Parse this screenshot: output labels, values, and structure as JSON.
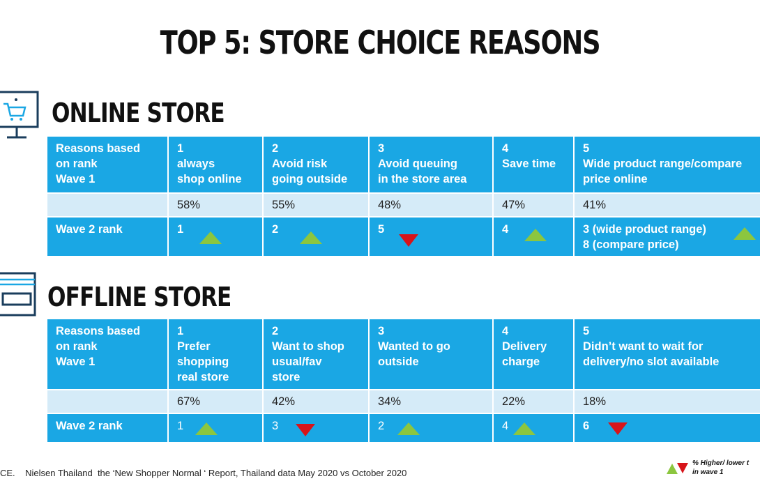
{
  "title": "TOP 5: STORE CHOICE REASONS",
  "online": {
    "title": "ONLINE STORE",
    "header_label": [
      "Reasons based",
      "on rank",
      "Wave 1"
    ],
    "reasons": [
      {
        "rank": "1",
        "label": [
          "always",
          "shop online"
        ]
      },
      {
        "rank": "2",
        "label": [
          "Avoid risk",
          "going outside"
        ]
      },
      {
        "rank": "3",
        "label": [
          "Avoid queuing",
          "in the store area"
        ]
      },
      {
        "rank": "4",
        "label": [
          "Save time"
        ]
      },
      {
        "rank": "5",
        "label": [
          "Wide product range/compare",
          "price online"
        ]
      }
    ],
    "percentages": [
      "58%",
      "55%",
      "48%",
      "47%",
      "41%"
    ],
    "wave2_label": "Wave 2 rank",
    "wave2": [
      {
        "rank": [
          "1"
        ],
        "trend": "up"
      },
      {
        "rank": [
          "2"
        ],
        "trend": "up"
      },
      {
        "rank": [
          "5"
        ],
        "trend": "down"
      },
      {
        "rank": [
          "4"
        ],
        "trend": "up"
      },
      {
        "rank": [
          "3 (wide product range)",
          "8 (compare price)"
        ],
        "trend": "up"
      }
    ]
  },
  "offline": {
    "title": "OFFLINE STORE",
    "header_label": [
      "Reasons based",
      "on rank",
      "Wave 1"
    ],
    "reasons": [
      {
        "rank": "1",
        "label": [
          "Prefer",
          "shopping",
          "real store"
        ]
      },
      {
        "rank": "2",
        "label": [
          "Want to shop",
          "usual/fav",
          "store"
        ]
      },
      {
        "rank": "3",
        "label": [
          "Wanted to go",
          "outside"
        ]
      },
      {
        "rank": "4",
        "label": [
          "Delivery",
          "charge"
        ]
      },
      {
        "rank": "5",
        "label": [
          "Didn’t want to wait for",
          "delivery/no slot available"
        ]
      }
    ],
    "percentages": [
      "67%",
      "42%",
      "34%",
      "22%",
      "18%"
    ],
    "wave2_label": "Wave 2 rank",
    "wave2": [
      {
        "rank": [
          "1"
        ],
        "trend": "up"
      },
      {
        "rank": [
          "3"
        ],
        "trend": "down"
      },
      {
        "rank": [
          "2"
        ],
        "trend": "up"
      },
      {
        "rank": [
          "4"
        ],
        "trend": "up"
      },
      {
        "rank": [
          "6"
        ],
        "trend": "down"
      }
    ]
  },
  "footer": {
    "source": "CE.    Nielsen Thailand  the ‘New Shopper Normal ‘ Report, Thailand data May 2020 vs October 2020",
    "legend_line1": "% Higher/ lower t",
    "legend_line2": "in wave 1"
  },
  "colors": {
    "cell_blue": "#1aa7e4",
    "pct_row": "#d5ebf8",
    "up": "#8cc63f",
    "down": "#d7141a"
  },
  "icons": {
    "online": "shopping-cart-monitor-icon",
    "offline": "storefront-icon"
  }
}
